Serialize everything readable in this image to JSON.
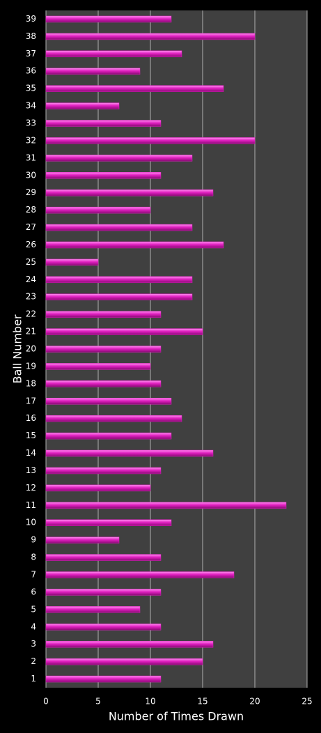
{
  "chart_data": {
    "type": "bar",
    "orientation": "horizontal",
    "x_label": "Number of Times Drawn",
    "y_label": "Ball Number",
    "categories": [
      "1",
      "2",
      "3",
      "4",
      "5",
      "6",
      "7",
      "8",
      "9",
      "10",
      "11",
      "12",
      "13",
      "14",
      "15",
      "16",
      "17",
      "18",
      "19",
      "20",
      "21",
      "22",
      "23",
      "24",
      "25",
      "26",
      "27",
      "28",
      "29",
      "30",
      "31",
      "32",
      "33",
      "34",
      "35",
      "36",
      "37",
      "38",
      "39"
    ],
    "values": [
      11,
      15,
      16,
      11,
      9,
      11,
      18,
      11,
      7,
      12,
      23,
      10,
      11,
      16,
      12,
      13,
      12,
      11,
      10,
      11,
      15,
      11,
      14,
      14,
      5,
      17,
      14,
      10,
      16,
      11,
      14,
      20,
      11,
      7,
      17,
      9,
      13,
      20,
      12
    ],
    "color": "#e020c0",
    "xlim": [
      0,
      25
    ],
    "xticks": [
      0,
      5,
      10,
      15,
      20,
      25
    ],
    "grid": true
  }
}
